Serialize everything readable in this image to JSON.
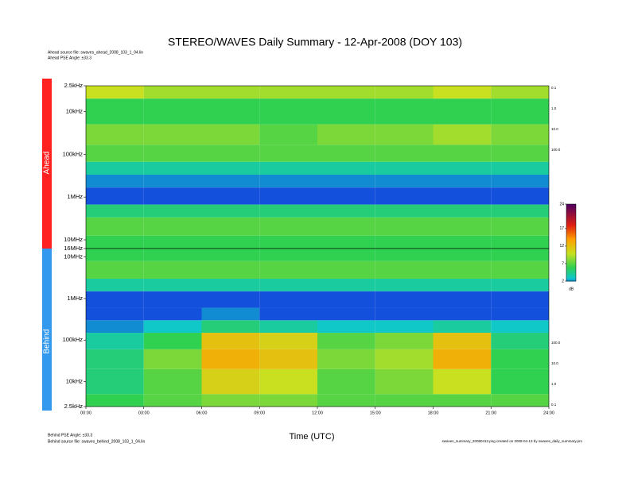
{
  "chart_data": {
    "type": "heatmap",
    "title": "STEREO/WAVES Daily Summary - 12-Apr-2008 (DOY 103)",
    "xlabel": "Time (UTC)",
    "xlim": [
      0,
      24
    ],
    "xticks": [
      {
        "value": 0,
        "label": "00:00"
      },
      {
        "value": 3,
        "label": "03:00"
      },
      {
        "value": 6,
        "label": "06:00"
      },
      {
        "value": 9,
        "label": "09:00"
      },
      {
        "value": 12,
        "label": "12:00"
      },
      {
        "value": 15,
        "label": "15:00"
      },
      {
        "value": 18,
        "label": "18:00"
      },
      {
        "value": 21,
        "label": "21:00"
      },
      {
        "value": 24,
        "label": "24:00"
      }
    ],
    "x_edges": [
      0,
      3,
      6,
      9,
      12,
      15,
      18,
      21,
      24
    ],
    "ylim": [
      2500,
      16000000
    ],
    "yscale": "log",
    "clim": [
      2,
      24
    ],
    "cticks": [
      2,
      7,
      12,
      17,
      24
    ],
    "clabel": "dB",
    "colorscale": [
      {
        "value": 0,
        "color": "#1414e6"
      },
      {
        "value": 3,
        "color": "#10c8c8"
      },
      {
        "value": 6,
        "color": "#30d050"
      },
      {
        "value": 10,
        "color": "#c8e020"
      },
      {
        "value": 14,
        "color": "#ffa000"
      },
      {
        "value": 18,
        "color": "#e02010"
      },
      {
        "value": 24,
        "color": "#500060"
      }
    ],
    "notes_top": [
      "Ahead source file: swaves_ahead_2008_103_1_04.lin",
      "Ahead PSE Angle: ±33.3"
    ],
    "notes_bottom": [
      "Behind PSE Angle: ±33.3",
      "Behind source file: swaves_behind_2008_103_1_04.lin"
    ],
    "footer": "swaves_summary_20080412.png created on 2008-04-13 by swaves_daily_summary.pro",
    "panels": [
      {
        "name": "Ahead",
        "color": "#ff2020",
        "yinvert": true,
        "yticks": [
          {
            "value": 2500,
            "label": "2.5kHz"
          },
          {
            "value": 10000,
            "label": "10kHz"
          },
          {
            "value": 100000,
            "label": "100kHz"
          },
          {
            "value": 1000000,
            "label": "1MHz"
          },
          {
            "value": 10000000,
            "label": "10MHz"
          },
          {
            "value": 16000000,
            "label": "16MHz"
          }
        ],
        "right_ticks": [
          {
            "value": 0.1,
            "label": "0.1"
          },
          {
            "value": 1,
            "label": "1.0"
          },
          {
            "value": 10,
            "label": "10.0"
          },
          {
            "value": 100,
            "label": "100.0"
          }
        ],
        "y_edges": [
          2500,
          5000,
          20000,
          60000,
          150000,
          300000,
          600000,
          1500000,
          3000000,
          8000000,
          16000000
        ],
        "values": [
          [
            10,
            9,
            9,
            9,
            9,
            9,
            10,
            9
          ],
          [
            6,
            6,
            6,
            6,
            6,
            6,
            6,
            6
          ],
          [
            8,
            8,
            8,
            7,
            8,
            8,
            9,
            8
          ],
          [
            7,
            7,
            7,
            7,
            7,
            7,
            7,
            7
          ],
          [
            4,
            4,
            4,
            4,
            4,
            4,
            4,
            4
          ],
          [
            2,
            2,
            2,
            2,
            2,
            2,
            2,
            2
          ],
          [
            1,
            1,
            1,
            1,
            1,
            1,
            1,
            1
          ],
          [
            5,
            5,
            5,
            5,
            5,
            5,
            5,
            5
          ],
          [
            7,
            7,
            7,
            7,
            7,
            7,
            7,
            7
          ],
          [
            6,
            6,
            6,
            6,
            6,
            6,
            6,
            6
          ]
        ]
      },
      {
        "name": "Behind",
        "color": "#3399ee",
        "yinvert": false,
        "yticks": [
          {
            "value": 10000000,
            "label": "10MHz"
          },
          {
            "value": 1000000,
            "label": "1MHz"
          },
          {
            "value": 100000,
            "label": "100kHz"
          },
          {
            "value": 10000,
            "label": "10kHz"
          },
          {
            "value": 2500,
            "label": "2.5kHz"
          }
        ],
        "right_ticks": [
          {
            "value": 100,
            "label": "100.0"
          },
          {
            "value": 10,
            "label": "10.0"
          },
          {
            "value": 1,
            "label": "1.0"
          },
          {
            "value": 0.1,
            "label": "0.1"
          }
        ],
        "y_edges": [
          2500,
          5000,
          20000,
          60000,
          150000,
          300000,
          600000,
          1500000,
          3000000,
          8000000,
          16000000
        ],
        "values": [
          [
            6,
            7,
            8,
            8,
            7,
            7,
            7,
            7
          ],
          [
            5,
            7,
            11,
            10,
            7,
            8,
            10,
            6
          ],
          [
            5,
            8,
            13,
            12,
            8,
            9,
            13,
            6
          ],
          [
            4,
            6,
            12,
            11,
            7,
            8,
            12,
            5
          ],
          [
            2,
            3,
            5,
            4,
            3,
            3,
            4,
            3
          ],
          [
            1,
            1,
            2,
            1,
            1,
            1,
            1,
            1
          ],
          [
            1,
            1,
            1,
            1,
            1,
            1,
            1,
            1
          ],
          [
            4,
            4,
            4,
            4,
            4,
            4,
            4,
            4
          ],
          [
            7,
            7,
            7,
            7,
            7,
            7,
            7,
            7
          ],
          [
            6,
            6,
            6,
            6,
            6,
            6,
            6,
            6
          ]
        ]
      }
    ]
  }
}
